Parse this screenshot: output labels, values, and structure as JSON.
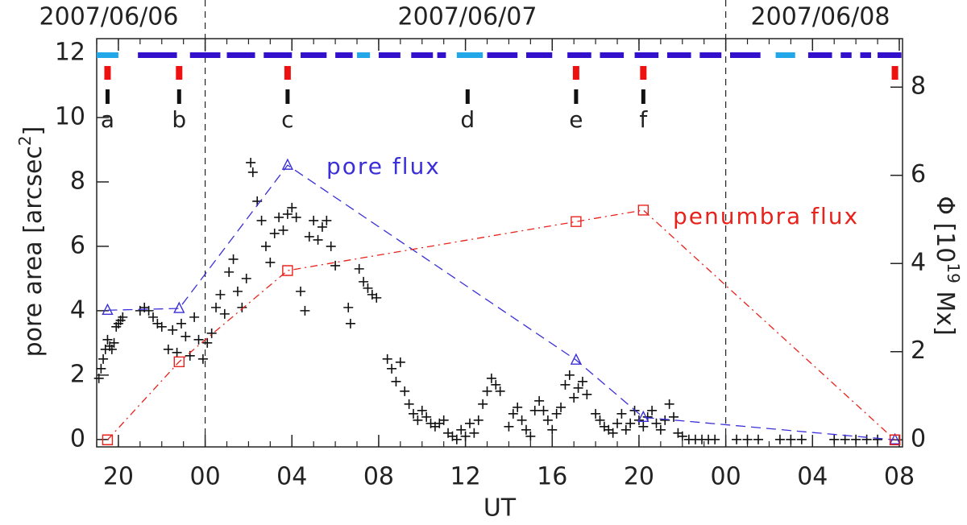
{
  "chart_data": {
    "type": "scatter",
    "dates": [
      "2007/06/06",
      "2007/06/07",
      "2007/06/08"
    ],
    "day_lines": [
      24,
      48
    ],
    "xlabel": "UT",
    "ylabel": {
      "text": "pore area [arcsec",
      "sup": "2",
      "close": "]"
    },
    "y2label": {
      "text": "Φ [10",
      "sup": "19",
      "close": " Mx]"
    },
    "xlim": [
      19,
      56.15
    ],
    "ylim": [
      -0.23,
      12.45
    ],
    "y2lim": [
      -0.16,
      9.1
    ],
    "xticks": [
      {
        "value": 20,
        "label": "20"
      },
      {
        "value": 24,
        "label": "00"
      },
      {
        "value": 28,
        "label": "04"
      },
      {
        "value": 32,
        "label": "08"
      },
      {
        "value": 36,
        "label": "12"
      },
      {
        "value": 40,
        "label": "16"
      },
      {
        "value": 44,
        "label": "20"
      },
      {
        "value": 48,
        "label": "00"
      },
      {
        "value": 52,
        "label": "04"
      },
      {
        "value": 56,
        "label": "08"
      }
    ],
    "yticks": [
      0,
      2,
      4,
      6,
      8,
      10,
      12
    ],
    "y2ticks": [
      0,
      2,
      4,
      6,
      8
    ],
    "coverage": [
      {
        "color": "#3311cc",
        "segments": [
          [
            20.9,
            22.7
          ],
          [
            23.3,
            24.7
          ],
          [
            25.0,
            26.3
          ],
          [
            26.7,
            28.0
          ],
          [
            28.4,
            29.6
          ],
          [
            30.0,
            30.8
          ],
          [
            32.0,
            33.0
          ],
          [
            33.5,
            34.5
          ],
          [
            34.7,
            35.1
          ],
          [
            37.0,
            38.4
          ],
          [
            38.8,
            40.0
          ],
          [
            40.7,
            41.8
          ],
          [
            42.2,
            43.3
          ],
          [
            43.8,
            44.9
          ],
          [
            45.3,
            46.4
          ],
          [
            46.8,
            47.8
          ],
          [
            48.2,
            49.6
          ],
          [
            51.8,
            52.9
          ],
          [
            53.3,
            53.8
          ],
          [
            54.2,
            54.7
          ],
          [
            55.0,
            56.1
          ]
        ]
      },
      {
        "color": "#22a8e8",
        "segments": [
          [
            19.0,
            20.0
          ],
          [
            31.0,
            31.6
          ],
          [
            35.6,
            36.8
          ],
          [
            50.3,
            51.2
          ]
        ]
      }
    ],
    "spectra": {
      "color": "#ee1111",
      "x": [
        19.5,
        22.8,
        27.8,
        41.1,
        44.2,
        55.8
      ]
    },
    "events": [
      {
        "label": "a",
        "x": 19.5
      },
      {
        "label": "b",
        "x": 22.8
      },
      {
        "label": "c",
        "x": 27.8
      },
      {
        "label": "d",
        "x": 36.1
      },
      {
        "label": "e",
        "x": 41.1
      },
      {
        "label": "f",
        "x": 44.2
      }
    ],
    "points": {
      "color": "#111111",
      "x": [
        19.1,
        19.2,
        19.3,
        19.4,
        19.5,
        19.6,
        19.7,
        19.8,
        19.9,
        20.0,
        20.1,
        20.2,
        21.0,
        21.2,
        21.4,
        21.6,
        21.8,
        22.0,
        22.3,
        22.5,
        22.7,
        22.9,
        23.1,
        23.3,
        23.5,
        23.7,
        23.9,
        24.1,
        24.3,
        24.5,
        24.7,
        24.9,
        25.1,
        25.3,
        25.5,
        25.7,
        25.9,
        26.1,
        26.2,
        26.4,
        26.6,
        26.8,
        27.0,
        27.2,
        27.4,
        27.6,
        27.8,
        28.0,
        28.2,
        28.4,
        28.6,
        28.8,
        29.0,
        29.2,
        29.4,
        29.6,
        29.8,
        30.0,
        30.6,
        30.7,
        31.1,
        31.3,
        31.5,
        31.7,
        31.9,
        32.4,
        32.6,
        32.8,
        33.0,
        33.2,
        33.4,
        33.6,
        33.8,
        34.0,
        34.2,
        34.4,
        34.6,
        34.8,
        35.0,
        35.2,
        35.4,
        35.6,
        35.8,
        36.0,
        36.2,
        36.4,
        36.6,
        36.8,
        37.0,
        37.2,
        37.4,
        37.6,
        38.0,
        38.2,
        38.4,
        38.6,
        38.8,
        39.0,
        39.2,
        39.4,
        39.6,
        39.8,
        40.0,
        40.2,
        40.4,
        40.6,
        40.8,
        41.0,
        41.2,
        41.4,
        41.6,
        42.0,
        42.2,
        42.4,
        42.6,
        42.8,
        43.0,
        43.2,
        43.4,
        43.6,
        43.8,
        44.0,
        44.2,
        44.4,
        44.6,
        44.8,
        45.0,
        45.2,
        45.4,
        45.6,
        45.8,
        46.0,
        46.3,
        46.6,
        46.9,
        47.2,
        47.5,
        48.5,
        49.0,
        49.5,
        50.5,
        51.0,
        51.5,
        53.0,
        53.5,
        54.0,
        54.5,
        55.0
      ],
      "y": [
        1.9,
        2.2,
        2.5,
        2.8,
        3.1,
        2.9,
        2.8,
        3.0,
        3.5,
        3.6,
        3.7,
        3.8,
        4.0,
        4.1,
        4.0,
        3.8,
        3.6,
        3.5,
        2.8,
        3.4,
        2.7,
        3.6,
        3.2,
        2.6,
        3.8,
        3.1,
        2.5,
        3.0,
        3.3,
        4.1,
        4.5,
        3.9,
        5.2,
        5.6,
        4.6,
        4.1,
        5.0,
        8.6,
        8.3,
        7.4,
        6.8,
        6.0,
        5.5,
        6.4,
        6.9,
        6.5,
        7.0,
        7.2,
        6.9,
        4.6,
        4.0,
        6.3,
        6.8,
        6.2,
        6.6,
        6.8,
        6.0,
        5.4,
        4.1,
        3.6,
        5.3,
        4.9,
        4.7,
        4.5,
        4.4,
        2.5,
        2.2,
        1.8,
        2.4,
        1.5,
        1.1,
        0.8,
        0.6,
        0.9,
        0.7,
        0.5,
        0.4,
        0.5,
        0.6,
        0.2,
        0.1,
        0.0,
        0.3,
        0.1,
        0.5,
        0.2,
        0.6,
        1.1,
        1.5,
        1.9,
        1.7,
        1.5,
        0.4,
        0.8,
        1.0,
        0.6,
        0.3,
        0.1,
        0.9,
        1.2,
        0.9,
        0.6,
        0.3,
        0.8,
        1.0,
        1.7,
        2.0,
        1.3,
        1.6,
        1.8,
        1.4,
        0.8,
        0.6,
        0.4,
        0.3,
        0.2,
        0.5,
        0.8,
        0.3,
        0.5,
        0.9,
        0.6,
        0.4,
        0.7,
        0.9,
        0.5,
        0.3,
        0.6,
        1.1,
        0.7,
        0.2,
        0.1,
        0,
        0,
        0,
        0,
        0,
        0,
        0,
        0,
        0,
        0,
        0,
        0,
        0,
        0,
        0,
        0
      ]
    },
    "series": [
      {
        "name": "pore flux",
        "color": "#3a2fd8",
        "marker": "triangle",
        "dash": "dashed",
        "axis": "y2",
        "x": [
          19.5,
          22.8,
          27.8,
          41.1,
          44.2,
          55.8
        ],
        "values": [
          2.94,
          2.98,
          6.23,
          1.81,
          0.51,
          0
        ]
      },
      {
        "name": "penumbra flux",
        "color": "#e8221b",
        "marker": "square",
        "dash": "dashdot",
        "axis": "y2",
        "x": [
          19.5,
          22.8,
          27.8,
          41.1,
          44.2,
          55.8
        ],
        "values": [
          0,
          1.77,
          3.84,
          4.95,
          5.21,
          0
        ]
      }
    ]
  }
}
